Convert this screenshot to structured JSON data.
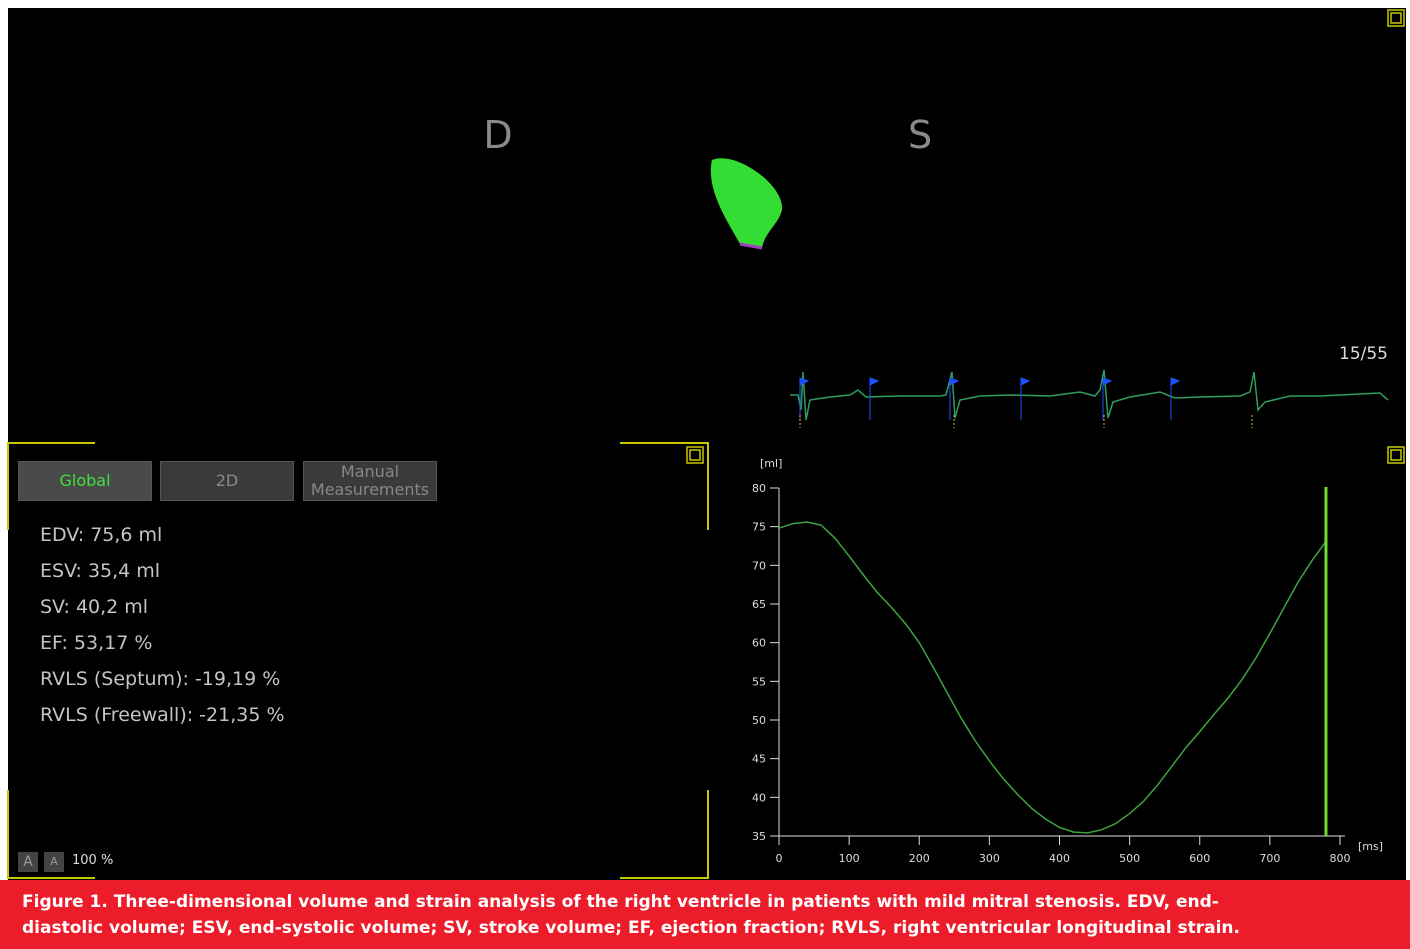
{
  "view_labels": {
    "left": "D",
    "right": "S"
  },
  "frame_counter": "15/55",
  "tabs": [
    "Global",
    "2D",
    "Manual Measurements"
  ],
  "measurements": [
    "EDV: 75,6 ml",
    "ESV: 35,4 ml",
    "SV: 40,2 ml",
    "EF: 53,17 %",
    "RVLS (Septum): -19,19 %",
    "RVLS (Freewall): -21,35 %"
  ],
  "zoom": {
    "buttons": [
      "A",
      "A"
    ],
    "level": "100 %"
  },
  "volume_chart": {
    "type": "line",
    "y_unit": "[ml]",
    "x_unit": "[ms]",
    "x": [
      0,
      20,
      40,
      60,
      80,
      100,
      120,
      140,
      160,
      180,
      200,
      220,
      240,
      260,
      280,
      300,
      320,
      340,
      360,
      380,
      400,
      420,
      440,
      460,
      480,
      500,
      520,
      540,
      560,
      580,
      600,
      620,
      640,
      660,
      680,
      700,
      720,
      740,
      760,
      780
    ],
    "values": [
      74.8,
      75.4,
      75.6,
      75.2,
      73.5,
      71.2,
      68.8,
      66.5,
      64.6,
      62.5,
      60,
      56.8,
      53.5,
      50.2,
      47.3,
      44.7,
      42.4,
      40.4,
      38.6,
      37.2,
      36.1,
      35.5,
      35.4,
      35.8,
      36.6,
      37.9,
      39.5,
      41.6,
      44,
      46.4,
      48.5,
      50.7,
      52.8,
      55.2,
      58,
      61.2,
      64.5,
      67.8,
      70.6,
      73.1
    ],
    "color": "#3fa33f",
    "xlim": [
      0,
      800
    ],
    "ylim": [
      35,
      80
    ],
    "xticks": [
      0,
      100,
      200,
      300,
      400,
      500,
      600,
      700,
      800
    ],
    "yticks": [
      35,
      40,
      45,
      50,
      55,
      60,
      65,
      70,
      75,
      80
    ],
    "cursor": 780,
    "cursor_color": "#6fdc2e"
  },
  "caption": {
    "lines": [
      "Figure 1.  Three-dimensional volume and strain analysis of the right ventricle in patients with mild mitral stenosis. EDV, end-",
      "diastolic volume; ESV, end-systolic volume; SV, stroke volume; EF, ejection fraction; RVLS, right ventricular longitudinal strain."
    ]
  }
}
